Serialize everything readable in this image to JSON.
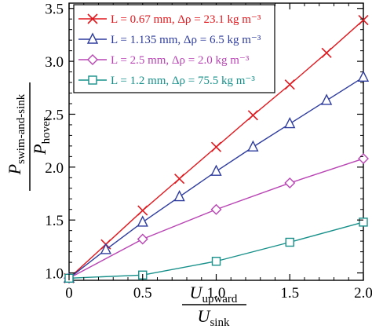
{
  "chart_data": {
    "type": "line",
    "x": [
      0,
      0.25,
      0.5,
      0.75,
      1.0,
      1.25,
      1.5,
      1.75,
      2.0
    ],
    "xlim": [
      0,
      2.0
    ],
    "ylim": [
      0.93,
      3.55
    ],
    "xticks": [
      0,
      0.5,
      1.0,
      1.5,
      2.0
    ],
    "xtick_labels": [
      "0",
      "0.5",
      "1.0",
      "1.5",
      "2.0"
    ],
    "yticks": [
      1.0,
      1.5,
      2.0,
      2.5,
      3.0,
      3.5
    ],
    "ytick_labels": [
      "1.0",
      "1.5",
      "2.0",
      "2.5",
      "3.0",
      "3.5"
    ],
    "xlabel": {
      "numerator_main": "U",
      "numerator_sub": "upward",
      "denominator_main": "U",
      "denominator_sub": "sink"
    },
    "ylabel": {
      "numerator_main": "P",
      "numerator_sub": "swim-and-sink",
      "denominator_main": "P",
      "denominator_sub": "hover"
    },
    "legend_position": "top-left",
    "series": [
      {
        "name": "L = 0.67 mm, Δρ = 23.1 kg m⁻³",
        "color": "#e0191f",
        "marker": "x",
        "x": [
          0,
          0.25,
          0.5,
          0.75,
          1.0,
          1.25,
          1.5,
          1.75,
          2.0
        ],
        "values": [
          0.95,
          1.27,
          1.59,
          1.89,
          2.19,
          2.49,
          2.78,
          3.08,
          3.39
        ]
      },
      {
        "name": "L = 1.135 mm, Δρ = 6.5 kg m⁻³",
        "color": "#2e3c9e",
        "marker": "triangle",
        "x": [
          0,
          0.25,
          0.5,
          0.75,
          1.0,
          1.25,
          1.5,
          1.75,
          2.0
        ],
        "values": [
          0.95,
          1.22,
          1.48,
          1.72,
          1.96,
          2.19,
          2.41,
          2.63,
          2.85
        ]
      },
      {
        "name": "L = 2.5 mm, Δρ = 2.0 kg m⁻³",
        "color": "#b944b4",
        "marker": "diamond",
        "x": [
          0,
          0.5,
          1.0,
          1.5,
          2.0
        ],
        "values": [
          0.95,
          1.32,
          1.6,
          1.85,
          2.08
        ]
      },
      {
        "name": "L = 1.2 mm, Δρ = 75.5 kg m⁻³",
        "color": "#17908a",
        "marker": "square",
        "x": [
          0,
          0.5,
          1.0,
          1.5,
          2.0
        ],
        "values": [
          0.95,
          0.98,
          1.11,
          1.29,
          1.48
        ]
      }
    ]
  }
}
